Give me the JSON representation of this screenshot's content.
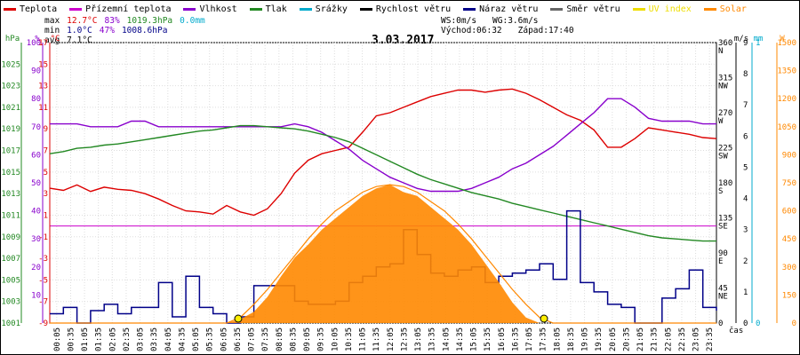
{
  "legend": [
    {
      "label": "Teplota",
      "color": "#dd0000"
    },
    {
      "label": "Přízemní teplota",
      "color": "#cc00cc"
    },
    {
      "label": "Vlhkost",
      "color": "#8800cc"
    },
    {
      "label": "Tlak",
      "color": "#228822"
    },
    {
      "label": "Srážky",
      "color": "#00aacc"
    },
    {
      "label": "Rychlost větru",
      "color": "#000000"
    },
    {
      "label": "Náraz větru",
      "color": "#000088"
    },
    {
      "label": "Směr větru",
      "color": "#666666"
    },
    {
      "label": "UV index",
      "color": "#eedd00"
    },
    {
      "label": "Solar",
      "color": "#ff8800"
    }
  ],
  "stats": {
    "max": {
      "label": "max",
      "temp": "12.7°C",
      "hum": "83%",
      "press": "1019.3hPa",
      "rain": "0.0mm"
    },
    "min": {
      "label": "min",
      "temp": "1.0°C",
      "hum": "47%",
      "press": "1008.6hPa"
    },
    "avg": {
      "label": "avg",
      "temp": "7.1°C"
    }
  },
  "wind_info": {
    "ws": "WS:0m/s",
    "wg": "WG:3.6m/s",
    "sunrise": "Východ:06:32",
    "sunset": "Západ:17:40"
  },
  "title": "3.03.2017",
  "chart_data": {
    "type": "line",
    "x_ticks": [
      "00:05",
      "00:35",
      "01:05",
      "01:35",
      "02:05",
      "02:35",
      "03:05",
      "03:35",
      "04:05",
      "04:35",
      "05:05",
      "05:35",
      "06:05",
      "06:35",
      "07:05",
      "07:35",
      "08:05",
      "08:35",
      "09:05",
      "09:35",
      "10:05",
      "10:35",
      "11:05",
      "11:35",
      "12:05",
      "12:35",
      "13:05",
      "13:35",
      "14:05",
      "14:35",
      "15:05",
      "15:35",
      "16:05",
      "16:35",
      "17:05",
      "17:35",
      "18:05",
      "18:35",
      "19:05",
      "19:35",
      "20:05",
      "20:35",
      "21:05",
      "21:35",
      "22:05",
      "22:35",
      "23:05",
      "23:35"
    ],
    "x_label": "čas",
    "axes": {
      "hPa": {
        "unit": "hPa",
        "color": "#228822",
        "ticks": [
          "1001",
          "1003",
          "1005",
          "1007",
          "1009",
          "1011",
          "1013",
          "1015",
          "1017",
          "1019",
          "1021",
          "1023",
          "1025"
        ],
        "range": [
          1001,
          1027
        ]
      },
      "pct": {
        "unit": "%",
        "color": "#8800cc",
        "ticks": [
          "10",
          "20",
          "30",
          "40",
          "50",
          "60",
          "70",
          "80",
          "90",
          "100"
        ],
        "range": [
          0,
          100
        ]
      },
      "temp": {
        "unit": "°C",
        "color": "#dd0000",
        "ticks": [
          "-9",
          "-7",
          "-5",
          "-3",
          "-1",
          "1",
          "3",
          "5",
          "7",
          "9",
          "11",
          "13",
          "15",
          "17"
        ],
        "range": [
          -9,
          17
        ]
      },
      "dir": {
        "unit": "",
        "color": "#000000",
        "ticks": [
          "0",
          "45\nNE",
          "90\nE",
          "135\nSE",
          "180\nS",
          "225\nSW",
          "270\nW",
          "315\nNW",
          "360\nN"
        ],
        "range": [
          0,
          360
        ]
      },
      "ms": {
        "unit": "m/s",
        "color": "#000000",
        "ticks": [
          "0",
          "1",
          "2",
          "3",
          "4",
          "5",
          "6",
          "7",
          "8",
          "9"
        ],
        "range": [
          0,
          9
        ]
      },
      "mm": {
        "unit": "mm",
        "color": "#00aacc",
        "ticks": [
          "0",
          "1"
        ],
        "range": [
          0,
          1
        ]
      },
      "w": {
        "unit": "W",
        "color": "#ff8800",
        "ticks": [
          "0",
          "150",
          "300",
          "450",
          "600",
          "750",
          "900",
          "1050",
          "1200",
          "1350",
          "1500"
        ],
        "range": [
          0,
          1500
        ]
      }
    },
    "series": [
      {
        "name": "Teplota",
        "axis": "temp",
        "color": "#dd0000",
        "values": [
          3.5,
          3.3,
          3.8,
          3.2,
          3.6,
          3.4,
          3.3,
          3.0,
          2.5,
          1.9,
          1.4,
          1.3,
          1.1,
          1.9,
          1.3,
          1.0,
          1.6,
          3.0,
          4.9,
          6.1,
          6.7,
          7.0,
          7.3,
          8.7,
          10.2,
          10.5,
          11.0,
          11.5,
          12.0,
          12.3,
          12.6,
          12.6,
          12.4,
          12.6,
          12.7,
          12.3,
          11.7,
          11.0,
          10.3,
          9.8,
          8.9,
          7.3,
          7.3,
          8.1,
          9.1,
          8.9,
          8.7,
          8.5,
          8.2,
          8.1
        ]
      },
      {
        "name": "Vlhkost",
        "axis": "pct",
        "color": "#8800cc",
        "values": [
          71,
          71,
          71,
          70,
          70,
          70,
          72,
          72,
          70,
          70,
          70,
          70,
          70,
          70,
          70,
          70,
          70,
          70,
          71,
          70,
          68,
          65,
          62,
          58,
          55,
          52,
          50,
          48,
          47,
          47,
          47,
          48,
          50,
          52,
          55,
          57,
          60,
          63,
          67,
          71,
          75,
          80,
          80,
          77,
          73,
          72,
          72,
          72,
          71,
          71
        ]
      },
      {
        "name": "Tlak",
        "axis": "hPa",
        "color": "#228822",
        "values": [
          1016.7,
          1016.9,
          1017.2,
          1017.3,
          1017.5,
          1017.6,
          1017.8,
          1018.0,
          1018.2,
          1018.4,
          1018.6,
          1018.8,
          1018.9,
          1019.1,
          1019.3,
          1019.3,
          1019.2,
          1019.1,
          1019.0,
          1018.8,
          1018.5,
          1018.2,
          1017.8,
          1017.2,
          1016.6,
          1016.0,
          1015.4,
          1014.8,
          1014.3,
          1013.9,
          1013.5,
          1013.1,
          1012.8,
          1012.5,
          1012.1,
          1011.8,
          1011.5,
          1011.2,
          1010.9,
          1010.6,
          1010.3,
          1010.0,
          1009.7,
          1009.4,
          1009.1,
          1008.9,
          1008.8,
          1008.7,
          1008.6,
          1008.6
        ]
      },
      {
        "name": "Náraz větru",
        "axis": "ms",
        "color": "#000088",
        "values": [
          0.3,
          0.5,
          0,
          0.4,
          0.6,
          0.3,
          0.5,
          0.5,
          1.3,
          0.2,
          1.5,
          0.5,
          0.3,
          0,
          0.2,
          1.2,
          1.2,
          1.2,
          0.7,
          0.6,
          0.6,
          0.7,
          1.3,
          1.5,
          1.8,
          1.9,
          3.0,
          2.2,
          1.6,
          1.5,
          1.7,
          1.8,
          1.3,
          1.5,
          1.6,
          1.7,
          1.9,
          1.4,
          3.6,
          1.3,
          1.0,
          0.6,
          0.5,
          0,
          0,
          0.8,
          1.1,
          1.7,
          0.5,
          0.4
        ]
      },
      {
        "name": "Solar",
        "axis": "w",
        "color": "#ff8800",
        "values": [
          0,
          0,
          0,
          0,
          0,
          0,
          0,
          0,
          0,
          0,
          0,
          0,
          0,
          0,
          20,
          60,
          140,
          250,
          350,
          420,
          500,
          560,
          620,
          680,
          720,
          740,
          700,
          680,
          620,
          560,
          500,
          420,
          320,
          220,
          110,
          30,
          0,
          0,
          0,
          0,
          0,
          0,
          0,
          0,
          0,
          0,
          0,
          0,
          0,
          0
        ]
      },
      {
        "name": "Solar max",
        "axis": "w",
        "color": "#ff8800",
        "values": [
          0,
          0,
          0,
          0,
          0,
          0,
          0,
          0,
          0,
          0,
          0,
          0,
          0,
          0,
          30,
          100,
          180,
          270,
          360,
          450,
          530,
          600,
          650,
          700,
          730,
          740,
          730,
          700,
          650,
          600,
          530,
          450,
          360,
          270,
          180,
          100,
          30,
          0,
          0,
          0,
          0,
          0,
          0,
          0,
          0,
          0,
          0,
          0,
          0,
          0
        ]
      }
    ]
  }
}
